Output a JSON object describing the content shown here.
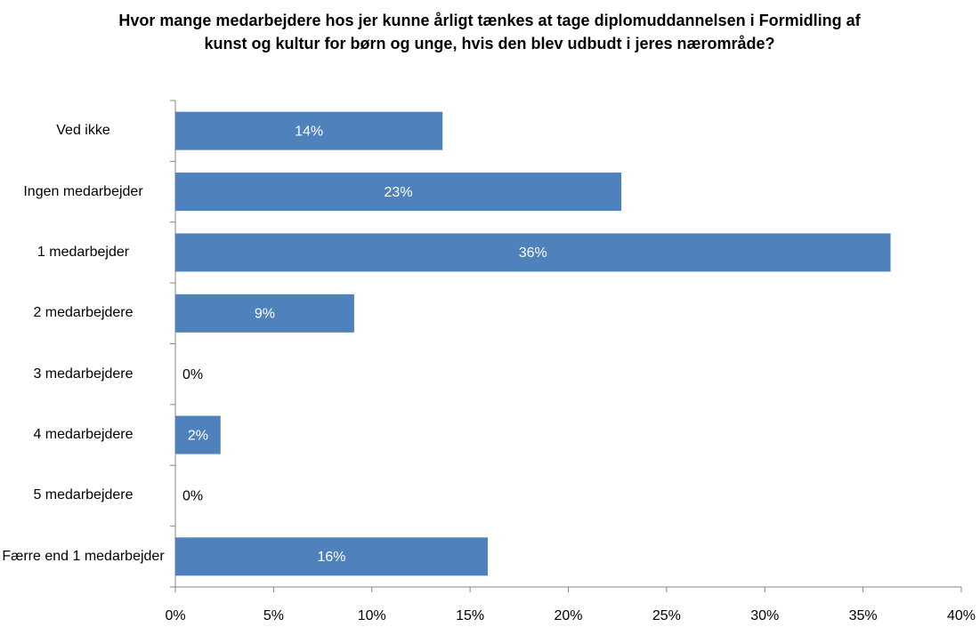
{
  "chart_data": {
    "type": "bar",
    "orientation": "horizontal",
    "title": "Hvor mange medarbejdere hos jer kunne årligt tænkes at tage diplomuddannelsen i Formidling af kunst og kultur for børn og unge, hvis den blev udbudt i jeres nærområde?",
    "categories": [
      "Ved ikke",
      "Ingen medarbejder",
      "1 medarbejder",
      "2 medarbejdere",
      "3 medarbejdere",
      "4 medarbejdere",
      "5 medarbejdere",
      "Færre end 1 medarbejder"
    ],
    "values": [
      13.6,
      22.7,
      36.4,
      9.1,
      0,
      2.3,
      0,
      15.9
    ],
    "value_labels": [
      "14%",
      "23%",
      "36%",
      "9%",
      "0%",
      "2%",
      "0%",
      "16%"
    ],
    "color": "#4f81bd",
    "xlim": [
      0,
      40
    ],
    "xticks": [
      {
        "value": 0,
        "label": "0%"
      },
      {
        "value": 5,
        "label": "5%"
      },
      {
        "value": 10,
        "label": "10%"
      },
      {
        "value": 15,
        "label": "15%"
      },
      {
        "value": 20,
        "label": "20%"
      },
      {
        "value": 25,
        "label": "25%"
      },
      {
        "value": 30,
        "label": "30%"
      },
      {
        "value": 35,
        "label": "35%"
      },
      {
        "value": 40,
        "label": "40%"
      }
    ],
    "grid": false
  }
}
